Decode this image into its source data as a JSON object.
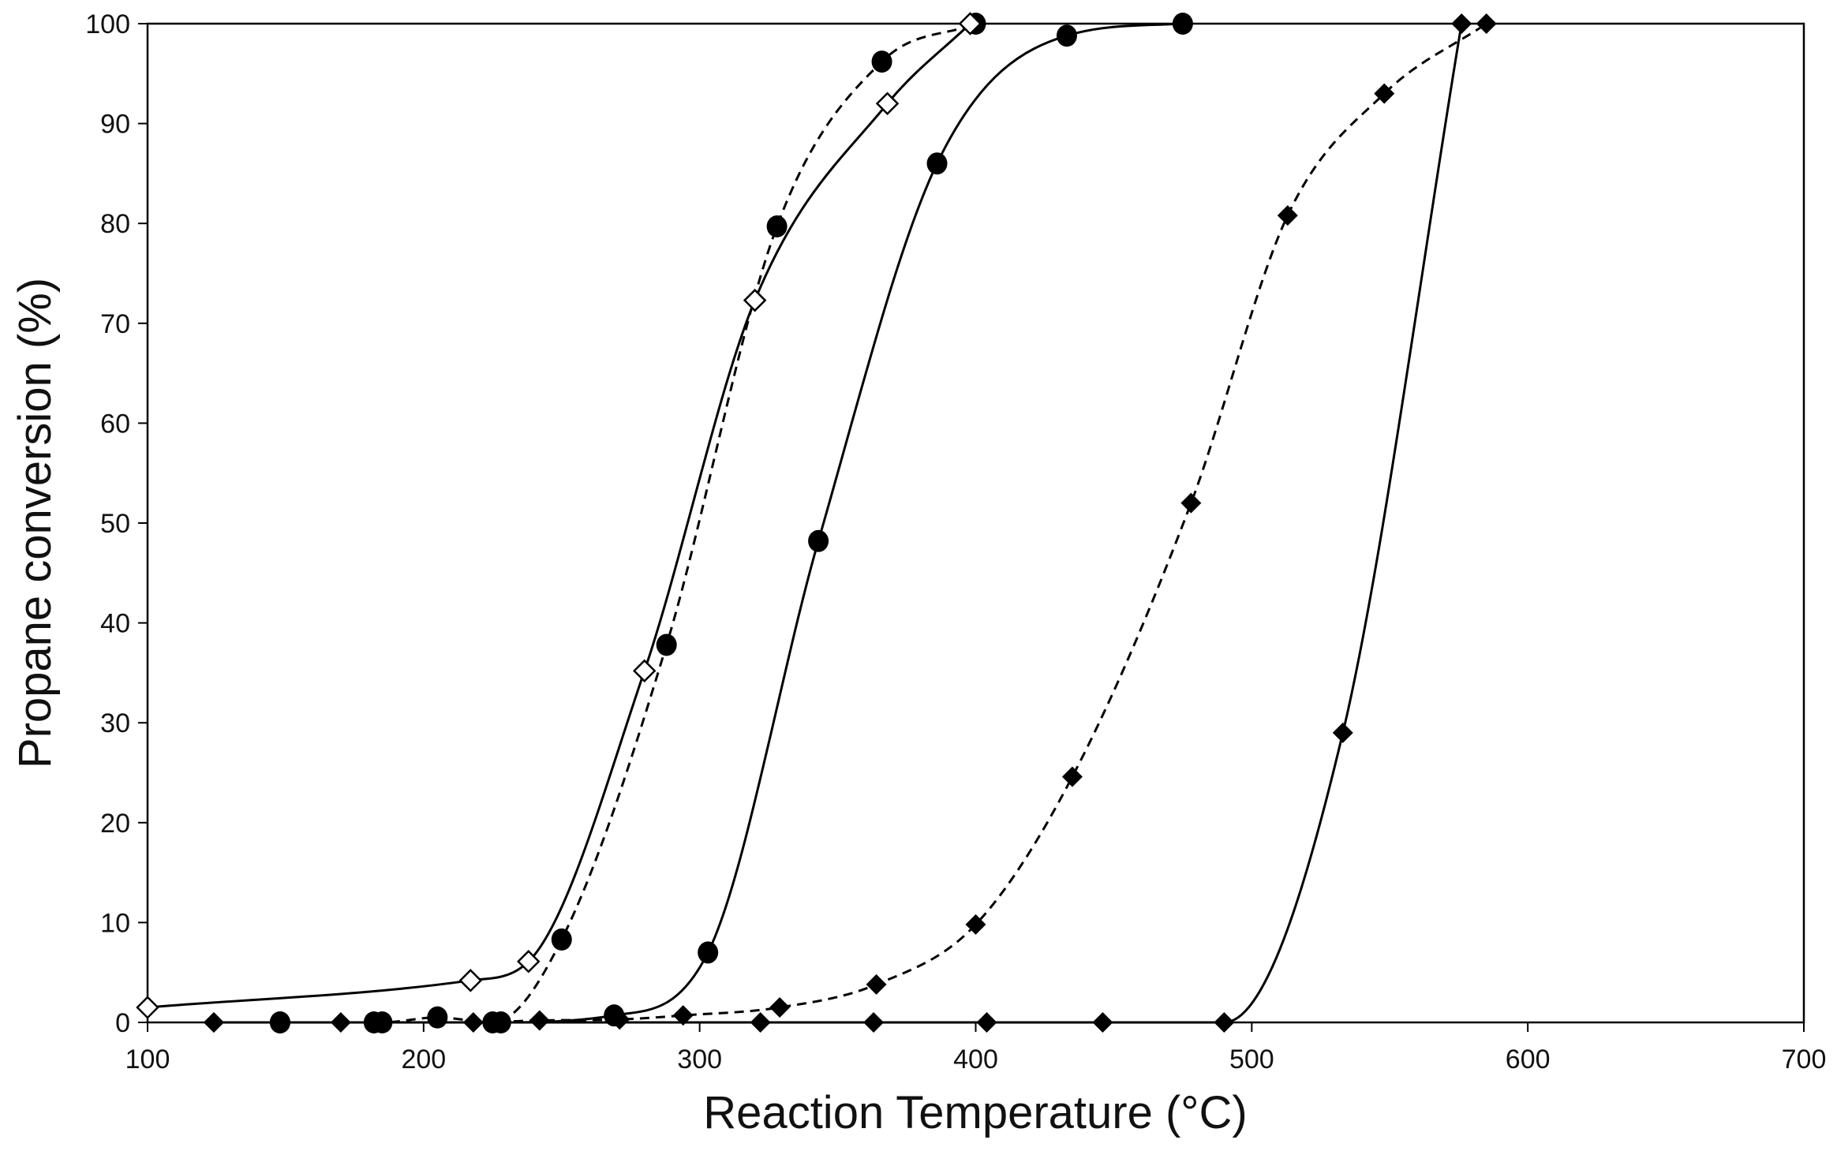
{
  "chart_data": {
    "type": "line",
    "title": "",
    "xlabel": "Reaction Temperature (°C)",
    "ylabel": "Propane conversion (%)",
    "xlim": [
      100,
      700
    ],
    "ylim": [
      0,
      100
    ],
    "x_ticks": [
      100,
      200,
      300,
      400,
      500,
      600,
      700
    ],
    "y_ticks": [
      0,
      10,
      20,
      30,
      40,
      50,
      60,
      70,
      80,
      90,
      100
    ],
    "grid": false,
    "legend": "none",
    "series": [
      {
        "marker": "circle",
        "line": "dashed",
        "points": [
          [
            148,
            0
          ],
          [
            185,
            0
          ],
          [
            205,
            0.5
          ],
          [
            225,
            0
          ],
          [
            250,
            8.3
          ],
          [
            288,
            37.8
          ],
          [
            328,
            79.7
          ],
          [
            366,
            96.2
          ],
          [
            400,
            100
          ]
        ]
      },
      {
        "marker": "open-diamond",
        "line": "solid",
        "points": [
          [
            100,
            1.5
          ],
          [
            217,
            4.2
          ],
          [
            238,
            6.1
          ],
          [
            280,
            35.2
          ],
          [
            320,
            72.3
          ],
          [
            368,
            92
          ],
          [
            398,
            100
          ]
        ]
      },
      {
        "marker": "circle",
        "line": "solid",
        "points": [
          [
            148,
            0
          ],
          [
            182,
            0
          ],
          [
            228,
            0
          ],
          [
            269,
            0.7
          ],
          [
            303,
            7
          ],
          [
            343,
            48.2
          ],
          [
            386,
            86
          ],
          [
            433,
            98.8
          ],
          [
            475,
            100
          ]
        ]
      },
      {
        "marker": "diamond",
        "line": "dashed",
        "points": [
          [
            124,
            0
          ],
          [
            170,
            0
          ],
          [
            218,
            0
          ],
          [
            242,
            0.2
          ],
          [
            271,
            0.3
          ],
          [
            294,
            0.7
          ],
          [
            329,
            1.5
          ],
          [
            364,
            3.8
          ],
          [
            400,
            9.8
          ],
          [
            435,
            24.6
          ],
          [
            478,
            52
          ],
          [
            513,
            80.8
          ],
          [
            548,
            93
          ],
          [
            585,
            100
          ]
        ]
      },
      {
        "marker": "diamond",
        "line": "solid",
        "points": [
          [
            124,
            0
          ],
          [
            322,
            0
          ],
          [
            363,
            0
          ],
          [
            404,
            0
          ],
          [
            446,
            0
          ],
          [
            490,
            0
          ],
          [
            533,
            29
          ],
          [
            576,
            100
          ]
        ]
      }
    ]
  }
}
